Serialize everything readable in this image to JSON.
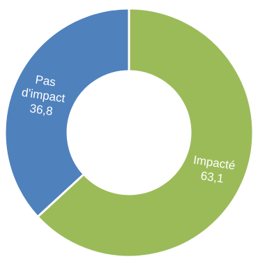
{
  "chart_data": {
    "type": "pie",
    "donut": true,
    "labels": [
      "Impacté",
      "Pas d'impact"
    ],
    "values": [
      63.1,
      36.8
    ],
    "value_labels": [
      "63,1",
      "36,8"
    ],
    "colors": [
      "#9BBB59",
      "#4F81BD"
    ],
    "legend": false
  }
}
